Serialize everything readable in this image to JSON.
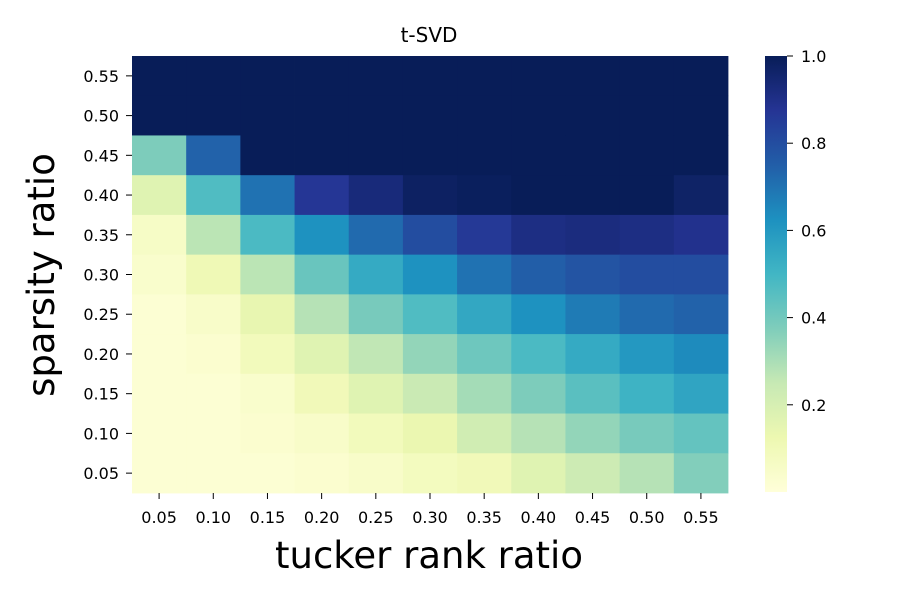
{
  "chart_data": {
    "type": "heatmap",
    "title": "t-SVD",
    "xlabel": "tucker rank ratio",
    "ylabel": "sparsity ratio",
    "x": [
      "0.05",
      "0.10",
      "0.15",
      "0.20",
      "0.25",
      "0.30",
      "0.35",
      "0.40",
      "0.45",
      "0.50",
      "0.55"
    ],
    "y": [
      "0.55",
      "0.50",
      "0.45",
      "0.40",
      "0.35",
      "0.30",
      "0.25",
      "0.20",
      "0.15",
      "0.10",
      "0.05"
    ],
    "values": [
      [
        1.0,
        1.0,
        1.0,
        1.0,
        1.0,
        1.0,
        1.0,
        1.0,
        1.0,
        1.0,
        1.0
      ],
      [
        1.0,
        1.0,
        1.0,
        1.0,
        1.0,
        1.0,
        1.0,
        1.0,
        1.0,
        1.0,
        1.0
      ],
      [
        0.38,
        0.74,
        1.0,
        1.0,
        1.0,
        1.0,
        1.0,
        1.0,
        1.0,
        1.0,
        1.0
      ],
      [
        0.17,
        0.47,
        0.7,
        0.87,
        0.93,
        0.98,
        0.99,
        1.0,
        1.0,
        1.0,
        0.97
      ],
      [
        0.06,
        0.27,
        0.48,
        0.62,
        0.72,
        0.8,
        0.86,
        0.91,
        0.92,
        0.91,
        0.89
      ],
      [
        0.04,
        0.11,
        0.27,
        0.42,
        0.54,
        0.62,
        0.7,
        0.75,
        0.78,
        0.8,
        0.8
      ],
      [
        0.02,
        0.05,
        0.14,
        0.28,
        0.39,
        0.47,
        0.55,
        0.62,
        0.68,
        0.72,
        0.74
      ],
      [
        0.02,
        0.03,
        0.09,
        0.17,
        0.26,
        0.34,
        0.41,
        0.48,
        0.54,
        0.6,
        0.64
      ],
      [
        0.02,
        0.02,
        0.04,
        0.1,
        0.17,
        0.24,
        0.31,
        0.38,
        0.45,
        0.51,
        0.56
      ],
      [
        0.02,
        0.02,
        0.03,
        0.05,
        0.09,
        0.13,
        0.22,
        0.28,
        0.34,
        0.39,
        0.43
      ],
      [
        0.02,
        0.02,
        0.02,
        0.03,
        0.05,
        0.08,
        0.1,
        0.17,
        0.23,
        0.28,
        0.37
      ]
    ],
    "colorbar": {
      "min": 0.0,
      "max": 1.0,
      "ticks": [
        0.2,
        0.4,
        0.6,
        0.8,
        1.0
      ],
      "tick_labels": [
        "0.2",
        "0.4",
        "0.6",
        "0.8",
        "1.0"
      ]
    },
    "colormap": [
      "#ffffd9",
      "#edf8b1",
      "#c7e9b4",
      "#7fcdbb",
      "#41b6c4",
      "#1d91c0",
      "#225ea8",
      "#253494",
      "#081d58"
    ],
    "grid": false,
    "legend": "colorbar-right"
  }
}
